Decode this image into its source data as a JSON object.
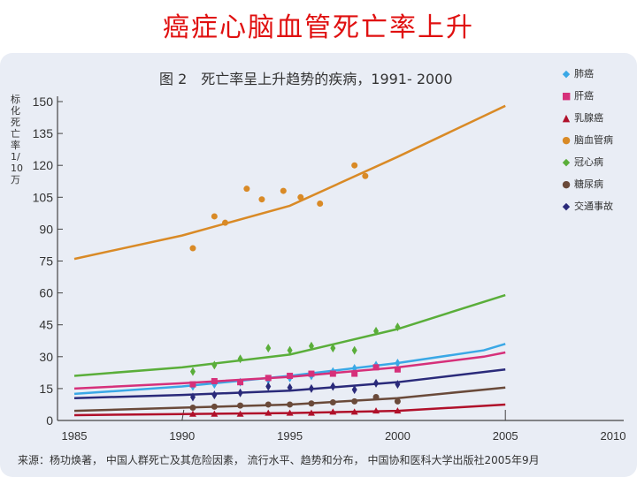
{
  "slide_title": "癌症心脑血管死亡率上升",
  "source": "来源：杨功焕著， 中国人群死亡及其危险因素， 流行水平、趋势和分布， 中国协和医科大学出版社2005年9月",
  "chart_data": {
    "type": "scatter",
    "title": "图 2　死亡率呈上升趋势的疾病，1991- 2000",
    "ylabel": "标化死亡率 1/10万",
    "xlabel": "",
    "xlim": [
      1985,
      2010
    ],
    "ylim": [
      0,
      150
    ],
    "xticks": [
      1985,
      1990,
      1995,
      2000,
      2005,
      2010
    ],
    "yticks": [
      0,
      15,
      30,
      45,
      60,
      75,
      90,
      105,
      120,
      135,
      150
    ],
    "legend_position": "right",
    "point_x": [
      1990.5,
      1991.5,
      1992.7,
      1994,
      1995,
      1996,
      1997,
      1998,
      1999,
      2000
    ],
    "series": [
      {
        "name": "肺癌",
        "marker": "diamond",
        "color": "#3aa8e6",
        "points": [
          16,
          17,
          18,
          19,
          20,
          21,
          23,
          24.5,
          26,
          27
        ],
        "trend_x": [
          1985,
          1990,
          1995,
          2000,
          2004,
          2005
        ],
        "trend": [
          12.5,
          16,
          21,
          27,
          33,
          36
        ]
      },
      {
        "name": "肝癌",
        "marker": "square",
        "color": "#d6307a",
        "points": [
          17,
          18.5,
          18,
          20,
          21,
          22,
          22,
          22,
          25,
          24
        ],
        "trend_x": [
          1985,
          1990,
          1995,
          2000,
          2004,
          2005
        ],
        "trend": [
          15,
          17.5,
          20.5,
          25,
          30,
          32
        ]
      },
      {
        "name": "乳腺癌",
        "marker": "triangle",
        "color": "#b0102a",
        "points": [
          3,
          3,
          3,
          3.5,
          3.5,
          3.5,
          4,
          4,
          4.5,
          4.5
        ],
        "trend_x": [
          1985,
          1990,
          1995,
          2000,
          2005
        ],
        "trend": [
          2.5,
          3,
          3.5,
          4.5,
          7.5
        ]
      },
      {
        "name": "脑血管病",
        "marker": "circle",
        "color": "#d98a26",
        "points": [
          81,
          96,
          93,
          109,
          104,
          108,
          105,
          102,
          120,
          115
        ],
        "points_x": [
          1990.5,
          1991.5,
          1992,
          1993,
          1993.7,
          1994.7,
          1995.5,
          1996.4,
          1998,
          1998.5
        ],
        "trend_x": [
          1985,
          1990,
          1995,
          2000,
          2005
        ],
        "trend": [
          76,
          87,
          101,
          124,
          148
        ]
      },
      {
        "name": "冠心病",
        "marker": "diamond",
        "color": "#5aae3a",
        "points": [
          23,
          26,
          29,
          34,
          33,
          35,
          34,
          33,
          42,
          44
        ],
        "trend_x": [
          1985,
          1990,
          1995,
          2000,
          2005
        ],
        "trend": [
          21,
          25,
          31,
          43,
          59
        ]
      },
      {
        "name": "糖尿病",
        "marker": "circle",
        "color": "#6a4a3a",
        "points": [
          6,
          6.5,
          7,
          7.5,
          7.5,
          8,
          8.5,
          9,
          11,
          9
        ],
        "trend_x": [
          1985,
          1990,
          1995,
          2000,
          2005
        ],
        "trend": [
          4.5,
          6,
          7.5,
          10.5,
          15.5
        ]
      },
      {
        "name": "交通事故",
        "marker": "diamond",
        "color": "#2a2a7a",
        "points": [
          11,
          12,
          13,
          16,
          15.5,
          15,
          16,
          14.5,
          17.5,
          17
        ],
        "trend_x": [
          1985,
          1990,
          1995,
          2000,
          2005
        ],
        "trend": [
          10.5,
          12,
          14,
          18,
          24
        ]
      }
    ]
  }
}
